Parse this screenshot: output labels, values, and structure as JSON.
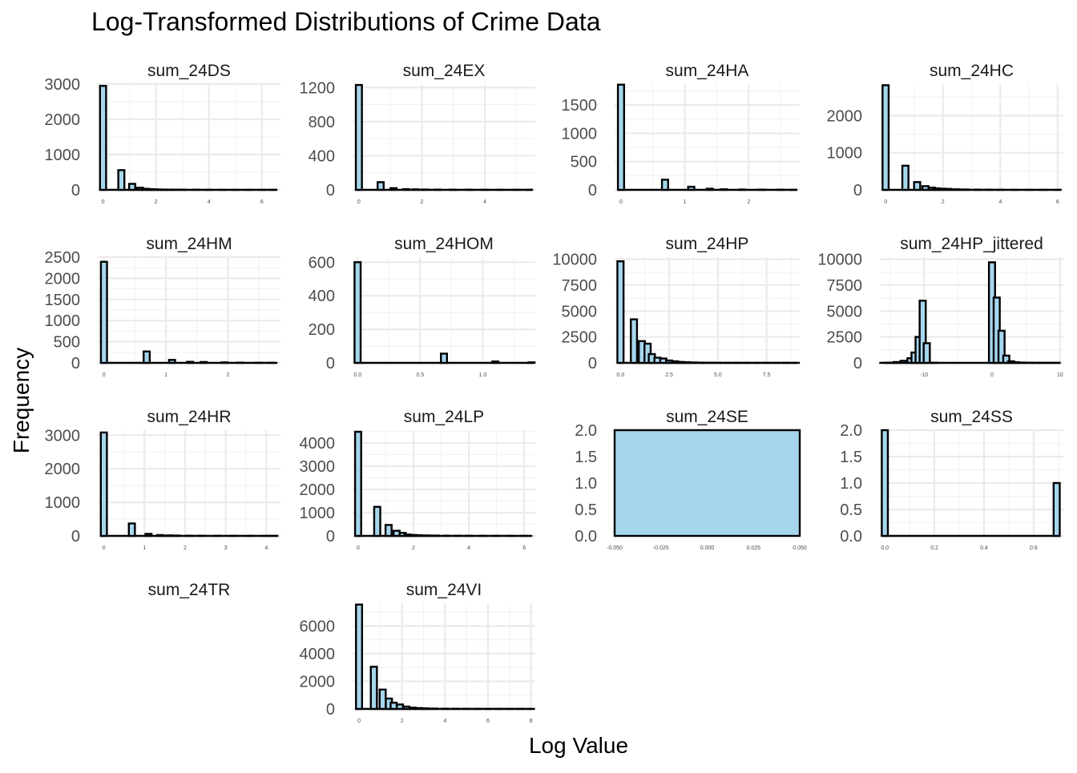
{
  "colors": {
    "bar_fill": "#a6d6ee",
    "bar_outline": "#000000",
    "grid": "#ebebeb",
    "background": "#ffffff"
  },
  "chart_data": {
    "type": "bar",
    "title": "Log-Transformed Distributions of Crime Data",
    "xlabel": "Log Value",
    "ylabel": "Frequency",
    "grid": true,
    "layout": "facet-wrap 4 columns, free scales",
    "panels": [
      {
        "name": "sum_24DS",
        "xlim": [
          -0.2,
          6.7
        ],
        "ylim": [
          0,
          3000
        ],
        "yticks": [
          0,
          1000,
          2000,
          3000
        ],
        "xticks": [
          0,
          2,
          4,
          6
        ],
        "bins": [
          [
            0,
            2950
          ],
          [
            0.69,
            560
          ],
          [
            1.1,
            170
          ],
          [
            1.39,
            60
          ],
          [
            1.61,
            30
          ],
          [
            1.79,
            20
          ],
          [
            1.95,
            15
          ],
          [
            2.08,
            10
          ],
          [
            2.3,
            8
          ],
          [
            2.5,
            6
          ],
          [
            2.7,
            5
          ],
          [
            3.0,
            4
          ],
          [
            3.5,
            3
          ],
          [
            4.0,
            2
          ],
          [
            4.5,
            2
          ],
          [
            5.0,
            1
          ],
          [
            5.5,
            1
          ],
          [
            6.0,
            1
          ],
          [
            6.4,
            1
          ]
        ]
      },
      {
        "name": "sum_24EX",
        "xlim": [
          -0.2,
          5.6
        ],
        "ylim": [
          0,
          1240
        ],
        "yticks": [
          0,
          400,
          800,
          1200
        ],
        "xticks": [
          0,
          2,
          4
        ],
        "bins": [
          [
            0,
            1230
          ],
          [
            0.69,
            90
          ],
          [
            1.1,
            20
          ],
          [
            1.5,
            8
          ],
          [
            1.8,
            6
          ],
          [
            2.1,
            4
          ],
          [
            2.5,
            3
          ],
          [
            3.0,
            2
          ],
          [
            3.5,
            2
          ],
          [
            4.0,
            1
          ],
          [
            4.5,
            1
          ],
          [
            5.0,
            1
          ],
          [
            5.4,
            1
          ]
        ]
      },
      {
        "name": "sum_24HA",
        "xlim": [
          -0.1,
          2.8
        ],
        "ylim": [
          0,
          1870
        ],
        "yticks": [
          0,
          500,
          1000,
          1500
        ],
        "xticks": [
          0,
          1,
          2
        ],
        "bins": [
          [
            0,
            1860
          ],
          [
            0.69,
            180
          ],
          [
            1.1,
            55
          ],
          [
            1.39,
            20
          ],
          [
            1.61,
            10
          ],
          [
            1.9,
            6
          ],
          [
            2.2,
            4
          ],
          [
            2.5,
            2
          ],
          [
            2.7,
            1
          ]
        ]
      },
      {
        "name": "sum_24HC",
        "xlim": [
          -0.2,
          6.2
        ],
        "ylim": [
          0,
          2850
        ],
        "yticks": [
          0,
          1000,
          2000
        ],
        "xticks": [
          0,
          2,
          4,
          6
        ],
        "bins": [
          [
            0,
            2820
          ],
          [
            0.69,
            650
          ],
          [
            1.1,
            210
          ],
          [
            1.39,
            100
          ],
          [
            1.61,
            60
          ],
          [
            1.79,
            40
          ],
          [
            2.0,
            30
          ],
          [
            2.2,
            25
          ],
          [
            2.5,
            15
          ],
          [
            2.8,
            10
          ],
          [
            3.2,
            6
          ],
          [
            3.6,
            4
          ],
          [
            4.0,
            3
          ],
          [
            4.5,
            2
          ],
          [
            5.0,
            1
          ],
          [
            5.5,
            1
          ],
          [
            6.0,
            1
          ]
        ]
      },
      {
        "name": "sum_24HM",
        "xlim": [
          -0.1,
          2.85
        ],
        "ylim": [
          0,
          2500
        ],
        "yticks": [
          0,
          500,
          1000,
          1500,
          2000,
          2500
        ],
        "xticks": [
          0,
          1,
          2
        ],
        "bins": [
          [
            0,
            2390
          ],
          [
            0.69,
            270
          ],
          [
            1.1,
            70
          ],
          [
            1.39,
            25
          ],
          [
            1.61,
            20
          ],
          [
            1.95,
            12
          ],
          [
            2.2,
            6
          ],
          [
            2.5,
            3
          ],
          [
            2.7,
            2
          ]
        ]
      },
      {
        "name": "sum_24HOM",
        "xlim": [
          -0.04,
          1.42
        ],
        "ylim": [
          0,
          630
        ],
        "yticks": [
          0,
          200,
          400,
          600
        ],
        "xticks": [
          0.0,
          0.5,
          1.0
        ],
        "bins": [
          [
            0,
            600
          ],
          [
            0.69,
            55
          ],
          [
            1.1,
            8
          ],
          [
            1.39,
            3
          ]
        ]
      },
      {
        "name": "sum_24HP",
        "xlim": [
          -0.3,
          9.2
        ],
        "ylim": [
          0,
          10200
        ],
        "yticks": [
          0,
          2500,
          5000,
          7500,
          10000
        ],
        "xticks": [
          0.0,
          2.5,
          5.0,
          7.5
        ],
        "bins": [
          [
            0,
            9800
          ],
          [
            0.69,
            4200
          ],
          [
            1.1,
            2100
          ],
          [
            1.39,
            1850
          ],
          [
            1.61,
            850
          ],
          [
            1.9,
            500
          ],
          [
            2.2,
            420
          ],
          [
            2.5,
            230
          ],
          [
            2.8,
            150
          ],
          [
            3.1,
            90
          ],
          [
            3.4,
            60
          ],
          [
            3.8,
            40
          ],
          [
            4.2,
            25
          ],
          [
            4.6,
            15
          ],
          [
            5.0,
            10
          ],
          [
            5.5,
            6
          ],
          [
            6.0,
            4
          ],
          [
            6.5,
            3
          ],
          [
            7.0,
            2
          ],
          [
            7.5,
            1
          ],
          [
            8.0,
            1
          ],
          [
            8.5,
            1
          ],
          [
            9.0,
            1
          ]
        ]
      },
      {
        "name": "sum_24HP_jittered",
        "xlim": [
          -16.5,
          10.5
        ],
        "ylim": [
          0,
          10200
        ],
        "yticks": [
          0,
          2500,
          5000,
          7500,
          10000
        ],
        "xticks": [
          -10,
          0,
          10
        ],
        "bins": [
          [
            -16,
            5
          ],
          [
            -15,
            20
          ],
          [
            -14,
            80
          ],
          [
            -13,
            200
          ],
          [
            -12,
            450
          ],
          [
            -11.4,
            1000
          ],
          [
            -10.8,
            2500
          ],
          [
            -10.2,
            6000
          ],
          [
            -9.6,
            1900
          ],
          [
            -8.5,
            10
          ],
          [
            0,
            9700
          ],
          [
            0.69,
            6300
          ],
          [
            1.4,
            3100
          ],
          [
            2.1,
            700
          ],
          [
            2.8,
            150
          ],
          [
            3.5,
            60
          ],
          [
            4.5,
            30
          ],
          [
            5.5,
            10
          ],
          [
            6.5,
            5
          ],
          [
            7.5,
            3
          ],
          [
            8.5,
            2
          ],
          [
            9.5,
            1
          ]
        ]
      },
      {
        "name": "sum_24HR",
        "xlim": [
          -0.15,
          4.35
        ],
        "ylim": [
          0,
          3150
        ],
        "yticks": [
          0,
          1000,
          2000,
          3000
        ],
        "xticks": [
          0,
          1,
          2,
          3,
          4
        ],
        "bins": [
          [
            0,
            3080
          ],
          [
            0.69,
            370
          ],
          [
            1.1,
            60
          ],
          [
            1.39,
            25
          ],
          [
            1.61,
            15
          ],
          [
            1.8,
            10
          ],
          [
            2.1,
            6
          ],
          [
            2.4,
            4
          ],
          [
            2.8,
            3
          ],
          [
            3.2,
            2
          ],
          [
            3.6,
            1
          ],
          [
            4.0,
            1
          ],
          [
            4.2,
            1
          ]
        ]
      },
      {
        "name": "sum_24LP",
        "xlim": [
          -0.2,
          6.4
        ],
        "ylim": [
          0,
          4550
        ],
        "yticks": [
          0,
          1000,
          2000,
          3000,
          4000
        ],
        "xticks": [
          0,
          2,
          4,
          6
        ],
        "bins": [
          [
            0,
            4480
          ],
          [
            0.69,
            1250
          ],
          [
            1.1,
            470
          ],
          [
            1.39,
            220
          ],
          [
            1.61,
            130
          ],
          [
            1.79,
            60
          ],
          [
            2.0,
            40
          ],
          [
            2.2,
            30
          ],
          [
            2.5,
            20
          ],
          [
            2.8,
            15
          ],
          [
            3.2,
            10
          ],
          [
            3.6,
            8
          ],
          [
            4.0,
            6
          ],
          [
            4.5,
            4
          ],
          [
            5.0,
            3
          ],
          [
            5.5,
            2
          ],
          [
            6.0,
            1
          ]
        ]
      },
      {
        "name": "sum_24SE",
        "xlim": [
          -0.05,
          0.05
        ],
        "ylim": [
          0,
          2.0
        ],
        "yticks": [
          0.0,
          0.5,
          1.0,
          1.5,
          2.0
        ],
        "xticks": [
          -0.05,
          -0.025,
          0.0,
          0.025,
          0.05
        ],
        "bins": [
          [
            0,
            2
          ]
        ]
      },
      {
        "name": "sum_24SS",
        "xlim": [
          -0.02,
          0.72
        ],
        "ylim": [
          0,
          2.0
        ],
        "yticks": [
          0.0,
          0.5,
          1.0,
          1.5,
          2.0
        ],
        "xticks": [
          0.0,
          0.2,
          0.4,
          0.6
        ],
        "bins": [
          [
            0,
            2
          ],
          [
            0.693,
            1
          ]
        ]
      },
      {
        "name": "sum_24TR",
        "xlim": [
          0,
          1
        ],
        "ylim": [
          0,
          1
        ],
        "yticks": [],
        "xticks": [],
        "bins": []
      },
      {
        "name": "sum_24VI",
        "xlim": [
          -0.3,
          8.2
        ],
        "ylim": [
          0,
          7650
        ],
        "yticks": [
          0,
          2000,
          4000,
          6000
        ],
        "xticks": [
          0,
          2,
          4,
          6,
          8
        ],
        "bins": [
          [
            0,
            7550
          ],
          [
            0.69,
            3050
          ],
          [
            1.1,
            1400
          ],
          [
            1.39,
            750
          ],
          [
            1.61,
            450
          ],
          [
            1.9,
            320
          ],
          [
            2.2,
            170
          ],
          [
            2.5,
            90
          ],
          [
            2.8,
            60
          ],
          [
            3.1,
            40
          ],
          [
            3.5,
            25
          ],
          [
            4.0,
            15
          ],
          [
            4.5,
            10
          ],
          [
            5.0,
            6
          ],
          [
            5.5,
            4
          ],
          [
            6.0,
            3
          ],
          [
            6.5,
            2
          ],
          [
            7.0,
            1
          ],
          [
            7.5,
            1
          ],
          [
            8.0,
            1
          ]
        ]
      }
    ]
  }
}
